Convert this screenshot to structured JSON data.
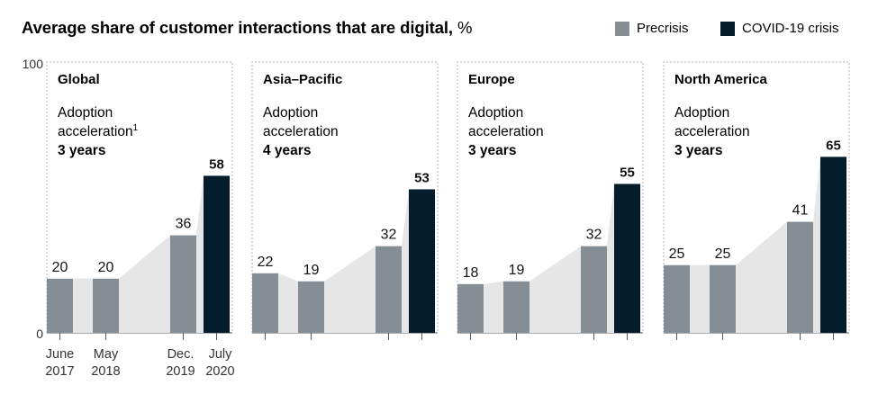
{
  "chart_data": {
    "type": "bar",
    "title": "Average share of customer interactions that are digital,",
    "title_unit": "%",
    "ylim": [
      0,
      100
    ],
    "y_ticks": [
      "100",
      "0"
    ],
    "x_tick_labels": [
      {
        "line1": "June",
        "line2": "2017"
      },
      {
        "line1": "May",
        "line2": "2018"
      },
      {
        "line1": "Dec.",
        "line2": "2019"
      },
      {
        "line1": "July",
        "line2": "2020"
      }
    ],
    "legend": [
      {
        "label": "Precrisis",
        "color": "#858d95"
      },
      {
        "label": "COVID-19 crisis",
        "color": "#051c2c"
      }
    ],
    "panels": [
      {
        "region": "Global",
        "adoption_line1": "Adoption",
        "adoption_line2": "acceleration",
        "footnote": "1",
        "years": "3 years",
        "values": [
          20,
          20,
          36,
          58
        ]
      },
      {
        "region": "Asia–Pacific",
        "adoption_line1": "Adoption",
        "adoption_line2": "acceleration",
        "footnote": "",
        "years": "4 years",
        "values": [
          22,
          19,
          32,
          53
        ]
      },
      {
        "region": "Europe",
        "adoption_line1": "Adoption",
        "adoption_line2": "acceleration",
        "footnote": "",
        "years": "3 years",
        "values": [
          18,
          19,
          32,
          55
        ]
      },
      {
        "region": "North America",
        "adoption_line1": "Adoption",
        "adoption_line2": "acceleration",
        "footnote": "",
        "years": "3 years",
        "values": [
          25,
          25,
          41,
          65
        ]
      }
    ]
  },
  "colors": {
    "precrisis": "#858d95",
    "crisis": "#051c2c",
    "area": "#e6e6e6",
    "border": "#b3b3b3"
  }
}
